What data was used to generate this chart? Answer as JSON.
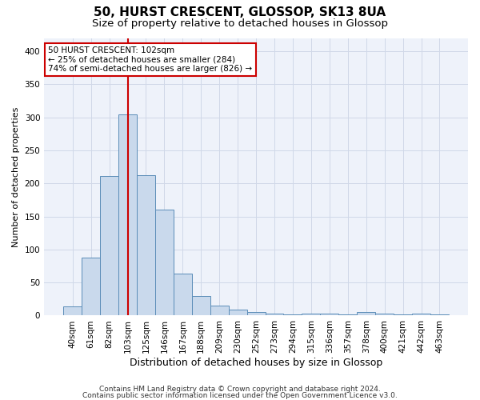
{
  "title1": "50, HURST CRESCENT, GLOSSOP, SK13 8UA",
  "title2": "Size of property relative to detached houses in Glossop",
  "xlabel": "Distribution of detached houses by size in Glossop",
  "ylabel": "Number of detached properties",
  "categories": [
    "40sqm",
    "61sqm",
    "82sqm",
    "103sqm",
    "125sqm",
    "146sqm",
    "167sqm",
    "188sqm",
    "209sqm",
    "230sqm",
    "252sqm",
    "273sqm",
    "294sqm",
    "315sqm",
    "336sqm",
    "357sqm",
    "378sqm",
    "400sqm",
    "421sqm",
    "442sqm",
    "463sqm"
  ],
  "values": [
    14,
    88,
    211,
    304,
    212,
    160,
    63,
    30,
    15,
    9,
    5,
    3,
    2,
    3,
    3,
    2,
    5,
    3,
    2,
    3,
    2
  ],
  "bar_color": "#c9d9ec",
  "bar_edge_color": "#5b8db8",
  "vline_x_index": 3,
  "vline_color": "#cc0000",
  "annotation_line1": "50 HURST CRESCENT: 102sqm",
  "annotation_line2": "← 25% of detached houses are smaller (284)",
  "annotation_line3": "74% of semi-detached houses are larger (826) →",
  "annotation_box_color": "#ffffff",
  "annotation_box_edge_color": "#cc0000",
  "ylim": [
    0,
    420
  ],
  "yticks": [
    0,
    50,
    100,
    150,
    200,
    250,
    300,
    350,
    400
  ],
  "grid_color": "#d0d8e8",
  "background_color": "#eef2fa",
  "footer1": "Contains HM Land Registry data © Crown copyright and database right 2024.",
  "footer2": "Contains public sector information licensed under the Open Government Licence v3.0.",
  "title1_fontsize": 11,
  "title2_fontsize": 9.5,
  "xlabel_fontsize": 9,
  "ylabel_fontsize": 8,
  "tick_fontsize": 7.5,
  "annotation_fontsize": 7.5,
  "footer_fontsize": 6.5
}
